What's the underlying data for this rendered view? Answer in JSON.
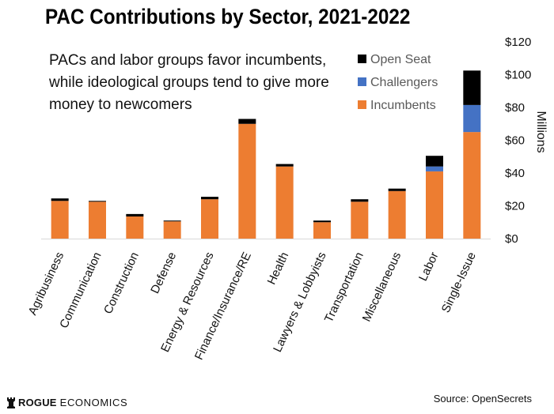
{
  "title": "PAC Contributions by Sector, 2021-2022",
  "annotation": [
    "PACs and labor groups favor incumbents,",
    "while ideological groups tend to give more",
    "money to newcomers"
  ],
  "source": "Source: OpenSecrets",
  "brand": {
    "primary": "ROGUE",
    "secondary": "ECONOMICS"
  },
  "chart_data": {
    "type": "bar",
    "stacked": true,
    "categories": [
      "Agribusiness",
      "Communication",
      "Construction",
      "Defense",
      "Energy & Resources",
      "Finance/Insurance/RE",
      "Health",
      "Lawyers & Lobbyists",
      "Transportation",
      "Miscellaneous",
      "Labor",
      "Single-Issue"
    ],
    "series": [
      {
        "name": "Incumbents",
        "color": "#ED7D31",
        "values": [
          23,
          22.5,
          13.5,
          10.5,
          24,
          70,
          44,
          10,
          22.5,
          29,
          41,
          65
        ]
      },
      {
        "name": "Challengers",
        "color": "#4472C4",
        "values": [
          0,
          0,
          0,
          0,
          0,
          0,
          0,
          0,
          0,
          0,
          3,
          16.5
        ]
      },
      {
        "name": "Open Seat",
        "color": "#000000",
        "values": [
          1.5,
          0.5,
          1.5,
          0.5,
          1.5,
          3,
          1.5,
          1,
          1.5,
          1.5,
          6.5,
          21
        ]
      }
    ],
    "legend_order": [
      "Open Seat",
      "Challengers",
      "Incumbents"
    ],
    "y_axis": {
      "label": "Millions",
      "ticks": [
        "$0",
        "$20",
        "$40",
        "$60",
        "$80",
        "$100",
        "$120"
      ],
      "tick_values": [
        0,
        20,
        40,
        60,
        80,
        100,
        120
      ],
      "ylim": [
        0,
        120
      ],
      "position": "right"
    },
    "grid": false,
    "legend_position": "top-right"
  }
}
